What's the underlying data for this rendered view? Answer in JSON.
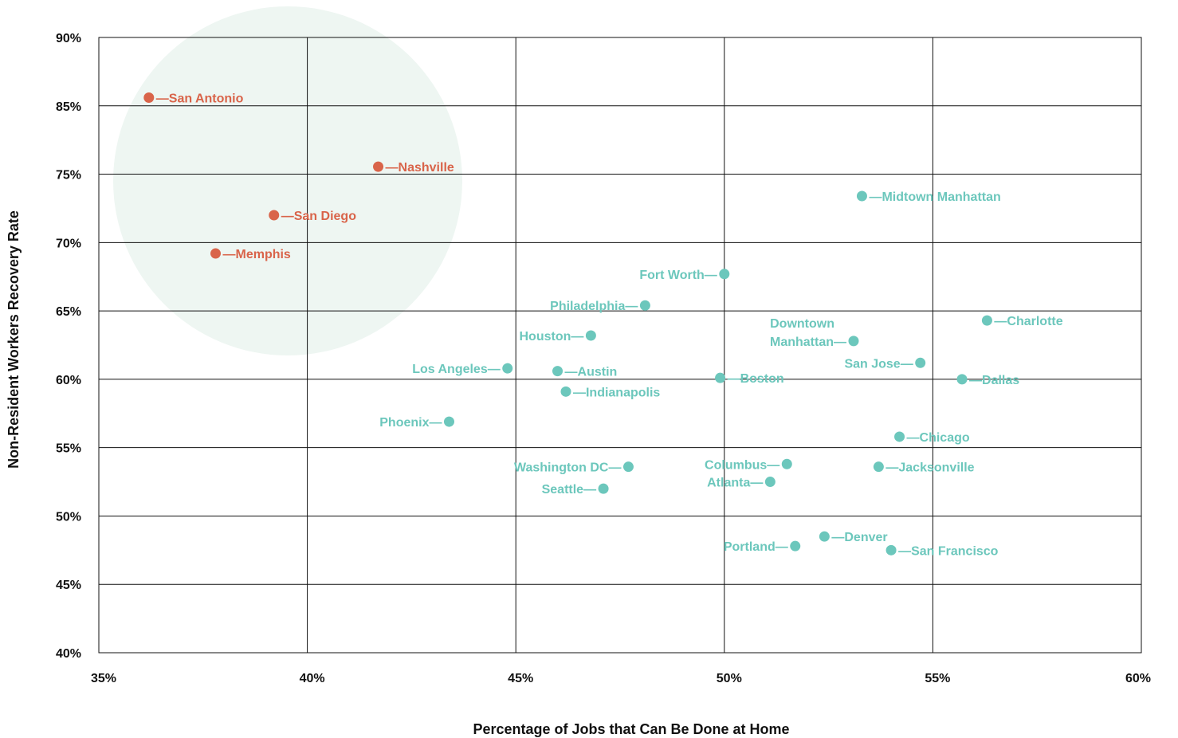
{
  "colors": {
    "highlight": "#D9644A",
    "default": "#6CC7BC",
    "halo": "#EEF6F2",
    "grid": "#111111"
  },
  "chart_data": {
    "type": "scatter",
    "xlabel": "Percentage of Jobs that Can Be Done at Home",
    "ylabel": "Non-Resident Workers Recovery Rate",
    "x_ticks": [
      "35%",
      "40%",
      "45%",
      "50%",
      "55%",
      "60%"
    ],
    "x_tick_values": [
      35,
      40,
      45,
      50,
      55,
      60
    ],
    "y_ticks": [
      "90%",
      "85%",
      "75%",
      "70%",
      "65%",
      "60%",
      "55%",
      "50%",
      "45%",
      "40%"
    ],
    "xlim": [
      35,
      60
    ],
    "grid": true,
    "points": [
      {
        "name": "San Antonio",
        "x": 36.2,
        "y": 85.6,
        "group": "highlight",
        "label_side": "right"
      },
      {
        "name": "Nashville",
        "x": 41.7,
        "y": 76.1,
        "group": "highlight",
        "label_side": "right"
      },
      {
        "name": "San Diego",
        "x": 39.2,
        "y": 72.0,
        "group": "highlight",
        "label_side": "right"
      },
      {
        "name": "Memphis",
        "x": 37.8,
        "y": 69.2,
        "group": "highlight",
        "label_side": "right"
      },
      {
        "name": "Midtown Manhattan",
        "x": 53.3,
        "y": 73.4,
        "group": "default",
        "label_side": "right"
      },
      {
        "name": "Fort Worth",
        "x": 50.0,
        "y": 67.7,
        "group": "default",
        "label_side": "left"
      },
      {
        "name": "Philadelphia",
        "x": 48.1,
        "y": 65.4,
        "group": "default",
        "label_side": "left"
      },
      {
        "name": "Charlotte",
        "x": 56.3,
        "y": 64.3,
        "group": "default",
        "label_side": "right"
      },
      {
        "name": "Houston",
        "x": 46.8,
        "y": 63.2,
        "group": "default",
        "label_side": "left"
      },
      {
        "name": "Downtown Manhattan",
        "x": 53.1,
        "y": 62.8,
        "group": "default",
        "label_side": "left",
        "label_lines": [
          "Downtown",
          "Manhattan"
        ]
      },
      {
        "name": "San Jose",
        "x": 54.7,
        "y": 61.2,
        "group": "default",
        "label_side": "left"
      },
      {
        "name": "Los Angeles",
        "x": 44.8,
        "y": 60.8,
        "group": "default",
        "label_side": "left"
      },
      {
        "name": "Austin",
        "x": 46.0,
        "y": 60.6,
        "group": "default",
        "label_side": "right"
      },
      {
        "name": "Boston",
        "x": 49.9,
        "y": 60.1,
        "group": "default",
        "label_side": "right"
      },
      {
        "name": "Dallas",
        "x": 55.7,
        "y": 60.0,
        "group": "default",
        "label_side": "right"
      },
      {
        "name": "Indianapolis",
        "x": 46.2,
        "y": 59.1,
        "group": "default",
        "label_side": "right"
      },
      {
        "name": "Phoenix",
        "x": 43.4,
        "y": 56.9,
        "group": "default",
        "label_side": "left"
      },
      {
        "name": "Chicago",
        "x": 54.2,
        "y": 55.8,
        "group": "default",
        "label_side": "right"
      },
      {
        "name": "Washington DC",
        "x": 47.7,
        "y": 53.6,
        "group": "default",
        "label_side": "left"
      },
      {
        "name": "Columbus",
        "x": 51.5,
        "y": 53.8,
        "group": "default",
        "label_side": "left"
      },
      {
        "name": "Jacksonville",
        "x": 53.7,
        "y": 53.6,
        "group": "default",
        "label_side": "right"
      },
      {
        "name": "Atlanta",
        "x": 51.1,
        "y": 52.5,
        "group": "default",
        "label_side": "left"
      },
      {
        "name": "Seattle",
        "x": 47.1,
        "y": 52.0,
        "group": "default",
        "label_side": "left"
      },
      {
        "name": "Denver",
        "x": 52.4,
        "y": 48.5,
        "group": "default",
        "label_side": "right"
      },
      {
        "name": "Portland",
        "x": 51.7,
        "y": 47.8,
        "group": "default",
        "label_side": "left"
      },
      {
        "name": "San Francisco",
        "x": 54.0,
        "y": 47.5,
        "group": "default",
        "label_side": "right"
      }
    ]
  }
}
